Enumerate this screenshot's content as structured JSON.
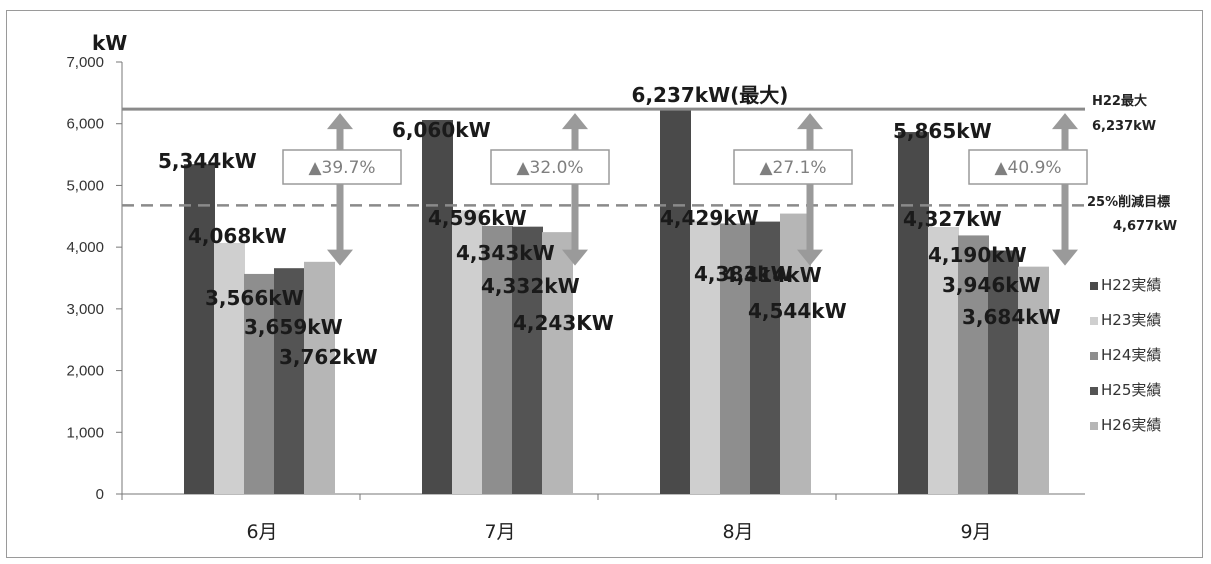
{
  "chart_data": {
    "type": "bar",
    "ylabel": "kW",
    "ylim": [
      0,
      7000
    ],
    "yticks": [
      "0",
      "1,000",
      "2,000",
      "3,000",
      "4,000",
      "5,000",
      "6,000",
      "7,000"
    ],
    "categories": [
      "6月",
      "7月",
      "8月",
      "9月"
    ],
    "series": [
      {
        "name": "H22実績",
        "color": "#4a4a4a",
        "values": [
          5344,
          6060,
          6237,
          5865
        ]
      },
      {
        "name": "H23実績",
        "color": "#cfcfcf",
        "values": [
          4068,
          4596,
          4429,
          4327
        ]
      },
      {
        "name": "H24実績",
        "color": "#8e8e8e",
        "values": [
          3566,
          4343,
          4383,
          4190
        ]
      },
      {
        "name": "H25実績",
        "color": "#545454",
        "values": [
          3659,
          4332,
          4414,
          3946
        ]
      },
      {
        "name": "H26実績",
        "color": "#b6b6b6",
        "values": [
          3762,
          4243,
          4544,
          3684
        ]
      }
    ],
    "data_labels": [
      [
        "5,344kW",
        "4,068kW",
        "3,566kW",
        "3,659kW",
        "3,762kW"
      ],
      [
        "6,060kW",
        "4,596kW",
        "4,343kW",
        "4,332kW",
        "4,243KW"
      ],
      [
        "",
        "4,429kW",
        "4,383kW",
        "4,414kW",
        "4,544kW"
      ],
      [
        "5,865kW",
        "4,327kW",
        "4,190kW",
        "3,946kW",
        "3,684kW"
      ]
    ],
    "max_line": {
      "value": 6237,
      "label": "6,237kW(最大)",
      "side_label_1": "H22最大",
      "side_label_2": "6,237kW"
    },
    "target_line": {
      "value": 4677,
      "side_label_1": "25%削減目標",
      "side_label_2": "4,677kW"
    },
    "reductions": [
      "▲39.7%",
      "▲32.0%",
      "▲27.1%",
      "▲40.9%"
    ],
    "grid": false,
    "legend_position": "right"
  }
}
